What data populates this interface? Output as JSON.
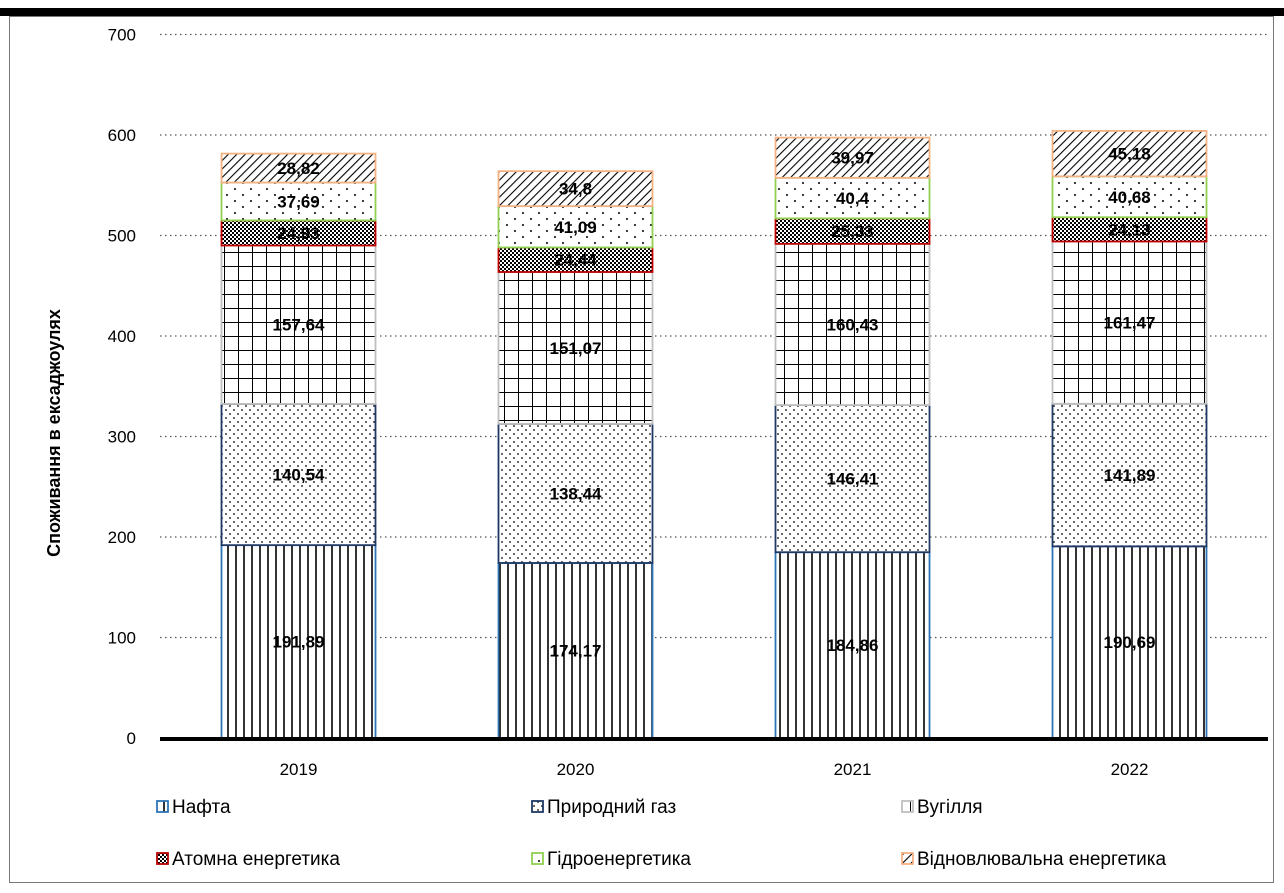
{
  "chart_data": {
    "type": "bar",
    "stacked": true,
    "title": "",
    "xlabel": "",
    "ylabel": "Споживання в ексаджоулях",
    "ylim": [
      0,
      700
    ],
    "yticks": [
      0,
      100,
      200,
      300,
      400,
      500,
      600,
      700
    ],
    "grid": true,
    "legend_position": "bottom",
    "categories": [
      "2019",
      "2020",
      "2021",
      "2022"
    ],
    "series": [
      {
        "name": "Нафта",
        "values": [
          191.89,
          174.17,
          184.86,
          190.69
        ],
        "labels": [
          "191,89",
          "174,17",
          "184,86",
          "190,69"
        ],
        "pattern": "vlines",
        "color": "#2E75B6"
      },
      {
        "name": "Природний газ",
        "values": [
          140.54,
          138.44,
          146.41,
          141.89
        ],
        "labels": [
          "140,54",
          "138,44",
          "146,41",
          "141,89"
        ],
        "pattern": "dots",
        "color": "#1F3864"
      },
      {
        "name": "Вугілля",
        "values": [
          157.64,
          151.07,
          160.43,
          161.47
        ],
        "labels": [
          "157,64",
          "151,07",
          "160,43",
          "161,47"
        ],
        "pattern": "grid",
        "color": "#BFBFBF"
      },
      {
        "name": "Атомна енергетика",
        "values": [
          24.93,
          24.44,
          25.33,
          24.13
        ],
        "labels": [
          "24,93",
          "24,44",
          "25,33",
          "24,13"
        ],
        "pattern": "check",
        "color": "#C00000"
      },
      {
        "name": "Гідроенергетика",
        "values": [
          37.69,
          41.09,
          40.4,
          40.68
        ],
        "labels": [
          "37,69",
          "41,09",
          "40,4",
          "40,68"
        ],
        "pattern": "sparsedots",
        "color": "#92D050"
      },
      {
        "name": "Відновлювальна енергетика",
        "values": [
          28.82,
          34.8,
          39.97,
          45.18
        ],
        "labels": [
          "28,82",
          "34,8",
          "39,97",
          "45,18"
        ],
        "pattern": "diag",
        "color": "#F4B183"
      }
    ]
  }
}
